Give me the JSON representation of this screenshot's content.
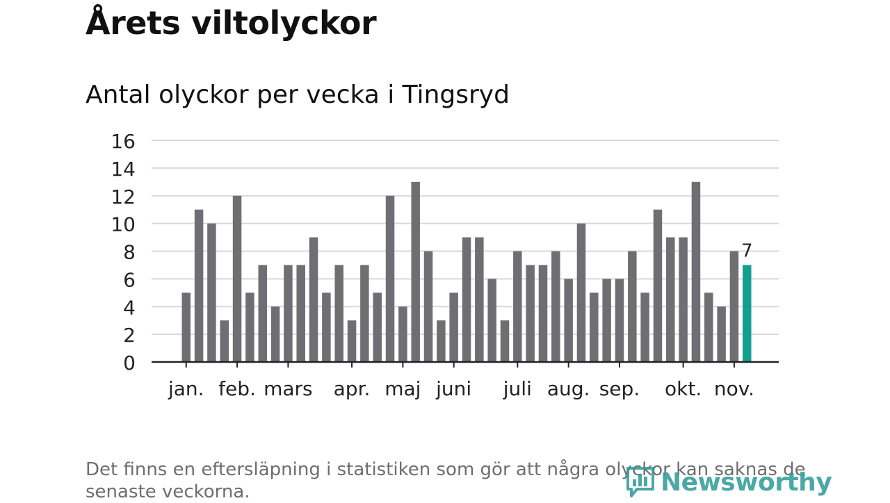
{
  "header": {
    "title": "Årets viltolyckor",
    "subtitle": "Antal olyckor per vecka i Tingsryd"
  },
  "footer": {
    "note": "Det finns en eftersläpning i statistiken som gör att några olyckor kan saknas de senaste veckorna.",
    "brand": "Newsworthy"
  },
  "colors": {
    "bar": "#6f6e73",
    "highlight": "#129f92",
    "grid": "#d9d9d9",
    "axis": "#222222",
    "text": "#222222",
    "brand": "#2c9a96"
  },
  "chart_data": {
    "type": "bar",
    "title": "Antal olyckor per vecka i Tingsryd",
    "xlabel": "",
    "ylabel": "",
    "ylim": [
      0,
      16
    ],
    "yticks": [
      0,
      2,
      4,
      6,
      8,
      10,
      12,
      14,
      16
    ],
    "grid": true,
    "values": [
      5,
      11,
      10,
      3,
      12,
      5,
      7,
      4,
      7,
      7,
      9,
      5,
      7,
      3,
      7,
      5,
      12,
      4,
      13,
      8,
      3,
      5,
      9,
      9,
      6,
      3,
      8,
      7,
      7,
      8,
      6,
      10,
      5,
      6,
      6,
      8,
      5,
      11,
      9,
      9,
      13,
      5,
      4,
      8,
      7
    ],
    "highlight_index": 44,
    "highlight_label": "7",
    "month_labels": [
      {
        "label": "jan.",
        "week_index": 0
      },
      {
        "label": "feb.",
        "week_index": 4
      },
      {
        "label": "mars",
        "week_index": 8
      },
      {
        "label": "apr.",
        "week_index": 13
      },
      {
        "label": "maj",
        "week_index": 17
      },
      {
        "label": "juni",
        "week_index": 21
      },
      {
        "label": "juli",
        "week_index": 26
      },
      {
        "label": "aug.",
        "week_index": 30
      },
      {
        "label": "sep.",
        "week_index": 34
      },
      {
        "label": "okt.",
        "week_index": 39
      },
      {
        "label": "nov.",
        "week_index": 43
      }
    ]
  }
}
